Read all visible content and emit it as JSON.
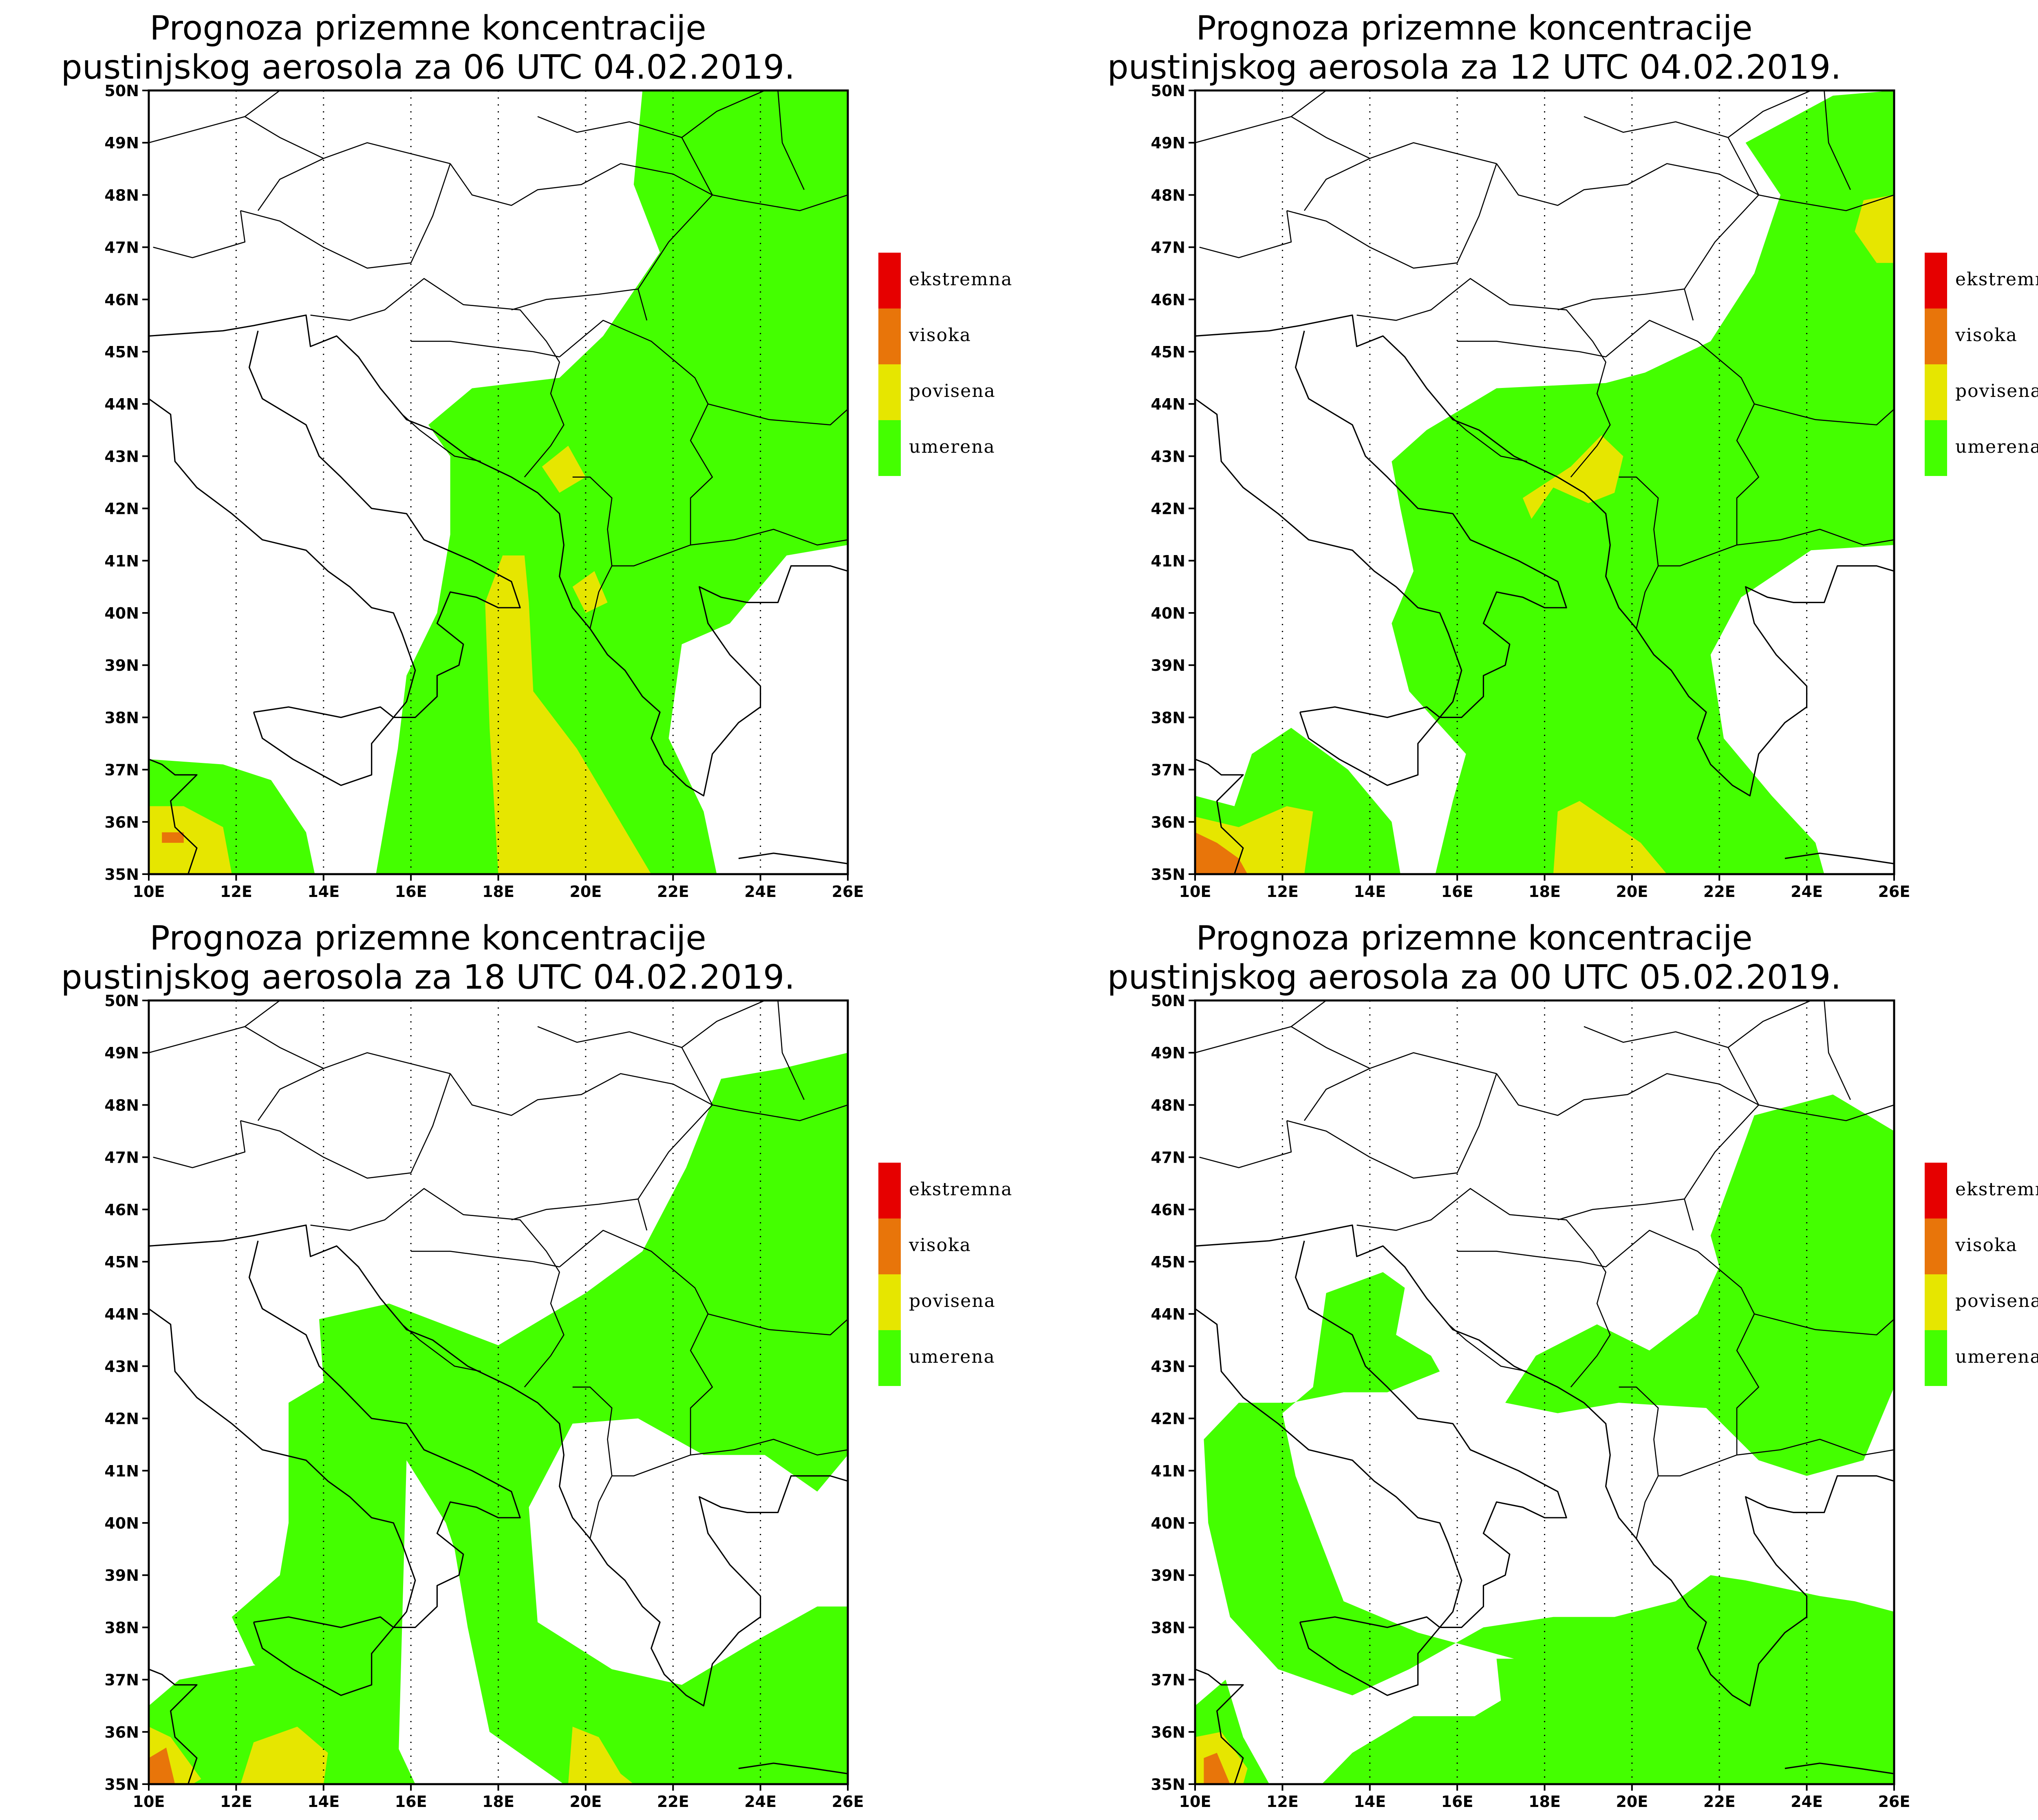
{
  "colors": {
    "ekstremna": "#e60000",
    "visoka": "#e8750a",
    "povisena": "#e6e600",
    "umerena": "#44ff00",
    "background": "#ffffff",
    "border": "#000000"
  },
  "legend": [
    {
      "key": "ekstremna",
      "label": "ekstremna"
    },
    {
      "key": "visoka",
      "label": "visoka"
    },
    {
      "key": "povisena",
      "label": "povisena"
    },
    {
      "key": "umerena",
      "label": "umerena"
    }
  ],
  "axes": {
    "lon_labels": [
      "10E",
      "12E",
      "14E",
      "16E",
      "18E",
      "20E",
      "22E",
      "24E",
      "26E"
    ],
    "lat_labels": [
      "35N",
      "36N",
      "37N",
      "38N",
      "39N",
      "40N",
      "41N",
      "42N",
      "43N",
      "44N",
      "45N",
      "46N",
      "47N",
      "48N",
      "49N",
      "50N"
    ],
    "lon_range": [
      10,
      26
    ],
    "lat_range": [
      35,
      50
    ],
    "gridlines": "dotted, meridians every 2°"
  },
  "panels": [
    {
      "id": "p06",
      "title_line1": "Prognoza prizemne koncentracije",
      "title_line2": "pustinjskog aerosola za 06 UTC 04.02.2019."
    },
    {
      "id": "p12",
      "title_line1": "Prognoza prizemne koncentracije",
      "title_line2": "pustinjskog aerosola za 12 UTC 04.02.2019."
    },
    {
      "id": "p18",
      "title_line1": "Prognoza prizemne koncentracije",
      "title_line2": "pustinjskog aerosola za 18 UTC 04.02.2019."
    },
    {
      "id": "p00",
      "title_line1": "Prognoza prizemne koncentracije",
      "title_line2": "pustinjskog aerosola za 00 UTC 05.02.2019."
    }
  ]
}
